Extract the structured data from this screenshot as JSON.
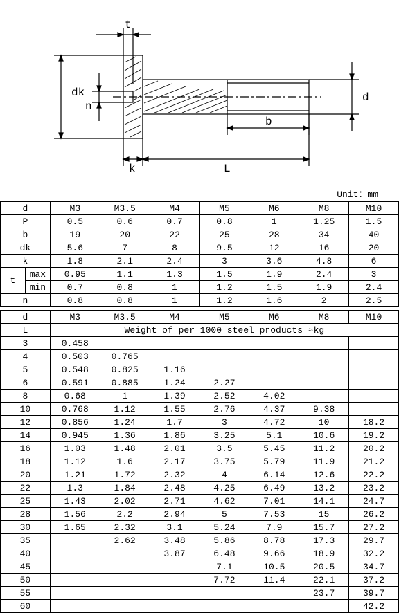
{
  "diagram": {
    "labels": {
      "t": "t",
      "dk": "dk",
      "n": "n",
      "k": "k",
      "L": "L",
      "b": "b",
      "d": "d"
    },
    "stroke": "#000000",
    "fill_hatch": "#808080",
    "background": "#ffffff"
  },
  "unit_text": "Unit：mm",
  "spec_table": {
    "columns": [
      "d",
      "M3",
      "M3.5",
      "M4",
      "M5",
      "M6",
      "M8",
      "M10"
    ],
    "rows": [
      {
        "label": "P",
        "values": [
          "0.5",
          "0.6",
          "0.7",
          "0.8",
          "1",
          "1.25",
          "1.5"
        ]
      },
      {
        "label": "b",
        "values": [
          "19",
          "20",
          "22",
          "25",
          "28",
          "34",
          "40"
        ]
      },
      {
        "label": "dk",
        "values": [
          "5.6",
          "7",
          "8",
          "9.5",
          "12",
          "16",
          "20"
        ]
      },
      {
        "label": "k",
        "values": [
          "1.8",
          "2.1",
          "2.4",
          "3",
          "3.6",
          "4.8",
          "6"
        ]
      }
    ],
    "t_row": {
      "label": "t",
      "sub": [
        {
          "label": "max",
          "values": [
            "0.95",
            "1.1",
            "1.3",
            "1.5",
            "1.9",
            "2.4",
            "3"
          ]
        },
        {
          "label": "min",
          "values": [
            "0.7",
            "0.8",
            "1",
            "1.2",
            "1.5",
            "1.9",
            "2.4"
          ]
        }
      ]
    },
    "n_row": {
      "label": "n",
      "values": [
        "0.8",
        "0.8",
        "1",
        "1.2",
        "1.6",
        "2",
        "2.5"
      ]
    }
  },
  "weight_table": {
    "columns": [
      "d",
      "M3",
      "M3.5",
      "M4",
      "M5",
      "M6",
      "M8",
      "M10"
    ],
    "L_label": "L",
    "header_text": "Weight of per 1000 steel products ≈kg",
    "rows": [
      {
        "L": "3",
        "v": [
          "0.458",
          "",
          "",
          "",
          "",
          "",
          ""
        ]
      },
      {
        "L": "4",
        "v": [
          "0.503",
          "0.765",
          "",
          "",
          "",
          "",
          ""
        ]
      },
      {
        "L": "5",
        "v": [
          "0.548",
          "0.825",
          "1.16",
          "",
          "",
          "",
          ""
        ]
      },
      {
        "L": "6",
        "v": [
          "0.591",
          "0.885",
          "1.24",
          "2.27",
          "",
          "",
          ""
        ]
      },
      {
        "L": "8",
        "v": [
          "0.68",
          "1",
          "1.39",
          "2.52",
          "4.02",
          "",
          ""
        ]
      },
      {
        "L": "10",
        "v": [
          "0.768",
          "1.12",
          "1.55",
          "2.76",
          "4.37",
          "9.38",
          ""
        ]
      },
      {
        "L": "12",
        "v": [
          "0.856",
          "1.24",
          "1.7",
          "3",
          "4.72",
          "10",
          "18.2"
        ]
      },
      {
        "L": "14",
        "v": [
          "0.945",
          "1.36",
          "1.86",
          "3.25",
          "5.1",
          "10.6",
          "19.2"
        ]
      },
      {
        "L": "16",
        "v": [
          "1.03",
          "1.48",
          "2.01",
          "3.5",
          "5.45",
          "11.2",
          "20.2"
        ]
      },
      {
        "L": "18",
        "v": [
          "1.12",
          "1.6",
          "2.17",
          "3.75",
          "5.79",
          "11.9",
          "21.2"
        ]
      },
      {
        "L": "20",
        "v": [
          "1.21",
          "1.72",
          "2.32",
          "4",
          "6.14",
          "12.6",
          "22.2"
        ]
      },
      {
        "L": "22",
        "v": [
          "1.3",
          "1.84",
          "2.48",
          "4.25",
          "6.49",
          "13.2",
          "23.2"
        ]
      },
      {
        "L": "25",
        "v": [
          "1.43",
          "2.02",
          "2.71",
          "4.62",
          "7.01",
          "14.1",
          "24.7"
        ]
      },
      {
        "L": "28",
        "v": [
          "1.56",
          "2.2",
          "2.94",
          "5",
          "7.53",
          "15",
          "26.2"
        ]
      },
      {
        "L": "30",
        "v": [
          "1.65",
          "2.32",
          "3.1",
          "5.24",
          "7.9",
          "15.7",
          "27.2"
        ]
      },
      {
        "L": "35",
        "v": [
          "",
          "2.62",
          "3.48",
          "5.86",
          "8.78",
          "17.3",
          "29.7"
        ]
      },
      {
        "L": "40",
        "v": [
          "",
          "",
          "3.87",
          "6.48",
          "9.66",
          "18.9",
          "32.2"
        ]
      },
      {
        "L": "45",
        "v": [
          "",
          "",
          "",
          "7.1",
          "10.5",
          "20.5",
          "34.7"
        ]
      },
      {
        "L": "50",
        "v": [
          "",
          "",
          "",
          "7.72",
          "11.4",
          "22.1",
          "37.2"
        ]
      },
      {
        "L": "55",
        "v": [
          "",
          "",
          "",
          "",
          "",
          "23.7",
          "39.7"
        ]
      },
      {
        "L": "60",
        "v": [
          "",
          "",
          "",
          "",
          "",
          "",
          "42.2"
        ]
      }
    ]
  }
}
